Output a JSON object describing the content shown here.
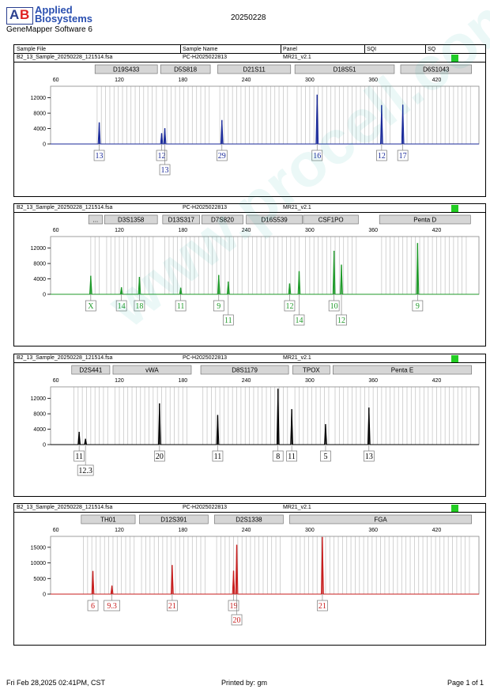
{
  "header": {
    "brand_line1": "Applied",
    "brand_line2": "Biosystems",
    "software": "GeneMapper Software 6",
    "date": "20250228",
    "columns": [
      "Sample File",
      "Sample Name",
      "Panel",
      "SQI",
      "SQ"
    ]
  },
  "footer": {
    "left": "Fri Feb 28,2025 02:41PM, CST",
    "center": "Printed by: gm",
    "right": "Page 1 of 1"
  },
  "watermark": "www.procell.com.cn",
  "colors": {
    "blue": "#1a2a9a",
    "green": "#1f9a2a",
    "black": "#000000",
    "red": "#c81e1e",
    "status": "#22cc22"
  },
  "chart_data": [
    {
      "type": "line",
      "sample_file": "B2_13_Sample_20250228_121514.fsa",
      "sample_name": "PC-H2025022813",
      "panel": "MR21_v2.1",
      "color": "#1a2a9a",
      "xticks": [
        60,
        120,
        180,
        240,
        300,
        360,
        420
      ],
      "xlim": [
        55,
        460
      ],
      "ylim": [
        0,
        15000
      ],
      "yticks": [
        0,
        4000,
        8000,
        12000
      ],
      "loci": [
        {
          "name": "D19S433",
          "start": 97,
          "end": 156
        },
        {
          "name": "D5S818",
          "start": 159,
          "end": 206
        },
        {
          "name": "D21S11",
          "start": 213,
          "end": 282
        },
        {
          "name": "D18S51",
          "start": 286,
          "end": 380
        },
        {
          "name": "D6S1043",
          "start": 386,
          "end": 453
        }
      ],
      "peaks": [
        {
          "x": 101,
          "h": 5600
        },
        {
          "x": 160,
          "h": 2800
        },
        {
          "x": 163,
          "h": 4100
        },
        {
          "x": 217,
          "h": 6200
        },
        {
          "x": 307,
          "h": 12800
        },
        {
          "x": 368,
          "h": 10100
        },
        {
          "x": 388,
          "h": 10200
        }
      ],
      "alleles": [
        {
          "label": "13",
          "x": 101,
          "row": 0
        },
        {
          "label": "12",
          "x": 160,
          "row": 0
        },
        {
          "label": "13",
          "x": 163,
          "row": 1
        },
        {
          "label": "29",
          "x": 217,
          "row": 0
        },
        {
          "label": "16",
          "x": 307,
          "row": 0
        },
        {
          "label": "12",
          "x": 368,
          "row": 0
        },
        {
          "label": "17",
          "x": 388,
          "row": 0
        }
      ]
    },
    {
      "type": "line",
      "sample_file": "B2_13_Sample_20250228_121514.fsa",
      "sample_name": "PC-H2025022813",
      "panel": "MR21_v2.1",
      "color": "#1f9a2a",
      "xticks": [
        60,
        120,
        180,
        240,
        300,
        360,
        420
      ],
      "xlim": [
        55,
        460
      ],
      "ylim": [
        0,
        15000
      ],
      "yticks": [
        0,
        4000,
        8000,
        12000
      ],
      "loci": [
        {
          "name": "...",
          "start": 91,
          "end": 104
        },
        {
          "name": "D3S1358",
          "start": 106,
          "end": 156
        },
        {
          "name": "D13S317",
          "start": 161,
          "end": 196
        },
        {
          "name": "D7S820",
          "start": 198,
          "end": 237
        },
        {
          "name": "D16S539",
          "start": 240,
          "end": 293
        },
        {
          "name": "CSF1PO",
          "start": 294,
          "end": 346
        },
        {
          "name": "Penta D",
          "start": 366,
          "end": 452
        }
      ],
      "peaks": [
        {
          "x": 93,
          "h": 4800
        },
        {
          "x": 122,
          "h": 1800
        },
        {
          "x": 139,
          "h": 4500
        },
        {
          "x": 178,
          "h": 1700
        },
        {
          "x": 214,
          "h": 5000
        },
        {
          "x": 223,
          "h": 3300
        },
        {
          "x": 281,
          "h": 2800
        },
        {
          "x": 290,
          "h": 6000
        },
        {
          "x": 323,
          "h": 11300
        },
        {
          "x": 330,
          "h": 7700
        },
        {
          "x": 402,
          "h": 13300
        }
      ],
      "alleles": [
        {
          "label": "X",
          "x": 93,
          "row": 0
        },
        {
          "label": "14",
          "x": 122,
          "row": 0
        },
        {
          "label": "18",
          "x": 139,
          "row": 0
        },
        {
          "label": "11",
          "x": 178,
          "row": 0
        },
        {
          "label": "9",
          "x": 214,
          "row": 0
        },
        {
          "label": "11",
          "x": 223,
          "row": 1
        },
        {
          "label": "12",
          "x": 281,
          "row": 0
        },
        {
          "label": "14",
          "x": 290,
          "row": 1
        },
        {
          "label": "10",
          "x": 323,
          "row": 0
        },
        {
          "label": "12",
          "x": 330,
          "row": 1
        },
        {
          "label": "9",
          "x": 402,
          "row": 0
        }
      ]
    },
    {
      "type": "line",
      "sample_file": "B2_13_Sample_20250228_121514.fsa",
      "sample_name": "PC-H2025022813",
      "panel": "MR21_v2.1",
      "color": "#000000",
      "xticks": [
        60,
        120,
        180,
        240,
        300,
        360,
        420
      ],
      "xlim": [
        55,
        460
      ],
      "ylim": [
        0,
        15000
      ],
      "yticks": [
        0,
        4000,
        8000,
        12000
      ],
      "loci": [
        {
          "name": "D2S441",
          "start": 75,
          "end": 111
        },
        {
          "name": "vWA",
          "start": 114,
          "end": 188
        },
        {
          "name": "D8S1179",
          "start": 197,
          "end": 280
        },
        {
          "name": "TPOX",
          "start": 284,
          "end": 319
        },
        {
          "name": "Penta E",
          "start": 322,
          "end": 453
        }
      ],
      "peaks": [
        {
          "x": 82,
          "h": 3300
        },
        {
          "x": 88,
          "h": 1500
        },
        {
          "x": 158,
          "h": 10700
        },
        {
          "x": 213,
          "h": 7700
        },
        {
          "x": 270,
          "h": 14500
        },
        {
          "x": 283,
          "h": 9200
        },
        {
          "x": 315,
          "h": 5300
        },
        {
          "x": 356,
          "h": 9600
        }
      ],
      "alleles": [
        {
          "label": "11",
          "x": 82,
          "row": 0
        },
        {
          "label": "12.3",
          "x": 88,
          "row": 1
        },
        {
          "label": "20",
          "x": 158,
          "row": 0
        },
        {
          "label": "11",
          "x": 213,
          "row": 0
        },
        {
          "label": "8",
          "x": 270,
          "row": 0
        },
        {
          "label": "11",
          "x": 283,
          "row": 0
        },
        {
          "label": "5",
          "x": 315,
          "row": 0
        },
        {
          "label": "13",
          "x": 356,
          "row": 0
        }
      ]
    },
    {
      "type": "line",
      "sample_file": "B2_13_Sample_20250228_121514.fsa",
      "sample_name": "PC-H2025022813",
      "panel": "MR21_v2.1",
      "color": "#c81e1e",
      "xticks": [
        60,
        120,
        180,
        240,
        300,
        360,
        420
      ],
      "xlim": [
        55,
        460
      ],
      "ylim": [
        0,
        18500
      ],
      "yticks": [
        0,
        5000,
        10000,
        15000
      ],
      "loci": [
        {
          "name": "TH01",
          "start": 84,
          "end": 135
        },
        {
          "name": "D12S391",
          "start": 139,
          "end": 204
        },
        {
          "name": "D2S1338",
          "start": 210,
          "end": 275
        },
        {
          "name": "FGA",
          "start": 281,
          "end": 453
        }
      ],
      "peaks": [
        {
          "x": 95,
          "h": 7400
        },
        {
          "x": 113,
          "h": 2700
        },
        {
          "x": 170,
          "h": 9300
        },
        {
          "x": 228,
          "h": 7500
        },
        {
          "x": 231,
          "h": 15800
        },
        {
          "x": 312,
          "h": 18300
        }
      ],
      "alleles": [
        {
          "label": "6",
          "x": 95,
          "row": 0
        },
        {
          "label": "9.3",
          "x": 113,
          "row": 0
        },
        {
          "label": "21",
          "x": 170,
          "row": 0
        },
        {
          "label": "19",
          "x": 228,
          "row": 0
        },
        {
          "label": "20",
          "x": 231,
          "row": 1
        },
        {
          "label": "21",
          "x": 312,
          "row": 0
        }
      ]
    }
  ]
}
